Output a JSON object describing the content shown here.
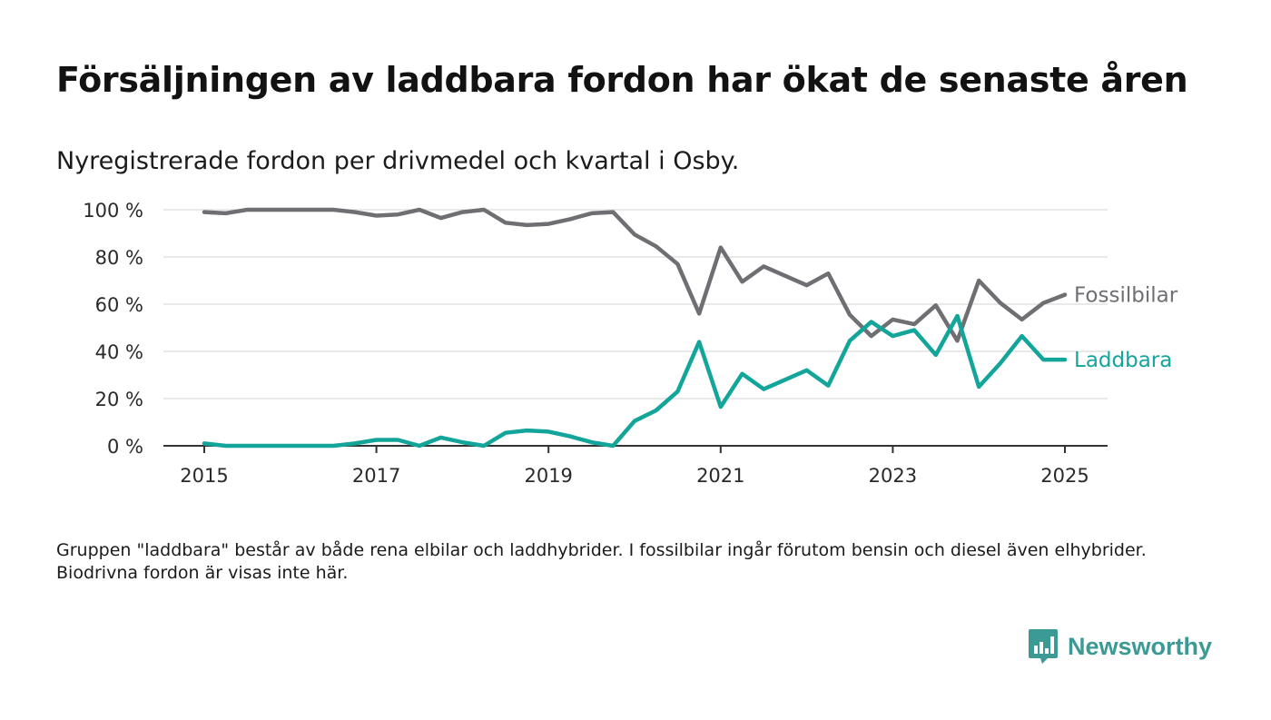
{
  "title": "Försäljningen av laddbara fordon har ökat de senaste åren",
  "subtitle": "Nyregistrerade fordon per drivmedel och kvartal i Osby.",
  "footnote": "Gruppen \"laddbara\" består av både rena elbilar och laddhybrider. I fossilbilar ingår förutom bensin och diesel även elhybrider. Biodrivna fordon är visas inte här.",
  "brand": {
    "name": "Newsworthy",
    "icon": "newsworthy-logo-icon",
    "color": "#3b9a94"
  },
  "chart_data": {
    "type": "line",
    "title": "Försäljningen av laddbara fordon har ökat de senaste åren",
    "subtitle": "Nyregistrerade fordon per drivmedel och kvartal i Osby.",
    "xlabel": "",
    "ylabel": "",
    "x": [
      "2015-Q1",
      "2015-Q2",
      "2015-Q3",
      "2015-Q4",
      "2016-Q1",
      "2016-Q2",
      "2016-Q3",
      "2016-Q4",
      "2017-Q1",
      "2017-Q2",
      "2017-Q3",
      "2017-Q4",
      "2018-Q1",
      "2018-Q2",
      "2018-Q3",
      "2018-Q4",
      "2019-Q1",
      "2019-Q2",
      "2019-Q3",
      "2019-Q4",
      "2020-Q1",
      "2020-Q2",
      "2020-Q3",
      "2020-Q4",
      "2021-Q1",
      "2021-Q2",
      "2021-Q3",
      "2021-Q4",
      "2022-Q1",
      "2022-Q2",
      "2022-Q3",
      "2022-Q4",
      "2023-Q1",
      "2023-Q2",
      "2023-Q3",
      "2023-Q4",
      "2024-Q1",
      "2024-Q2",
      "2024-Q3",
      "2024-Q4",
      "2025-Q1"
    ],
    "xticks": [
      "2015",
      "2017",
      "2019",
      "2021",
      "2023",
      "2025"
    ],
    "yticks": [
      "0 %",
      "20 %",
      "40 %",
      "60 %",
      "80 %",
      "100 %"
    ],
    "ylim": [
      0,
      100
    ],
    "grid": true,
    "legend": "direct-labels-right",
    "series": [
      {
        "name": "Fossilbilar",
        "color": "#6f6f73",
        "values": [
          99,
          98.5,
          100,
          100,
          100,
          100,
          100,
          99,
          97.5,
          98,
          100,
          96.5,
          99,
          100,
          94.5,
          93.5,
          94,
          96,
          98.5,
          99,
          89.5,
          84.5,
          77,
          56,
          84,
          69.5,
          76,
          72,
          68,
          73,
          55.5,
          46.5,
          53.5,
          51.5,
          59.5,
          44.5,
          70,
          60.5,
          53.5,
          60.5,
          64
        ]
      },
      {
        "name": "Laddbara",
        "color": "#13a59a",
        "values": [
          1,
          0,
          0,
          0,
          0,
          0,
          0,
          1,
          2.5,
          2.5,
          0,
          3.5,
          1.5,
          0,
          5.5,
          6.5,
          6,
          4,
          1.5,
          0,
          10.5,
          15,
          23,
          44,
          16.5,
          30.5,
          24,
          28,
          32,
          25.5,
          44.5,
          52.5,
          46.5,
          49,
          38.5,
          55,
          25,
          35,
          46.5,
          36.5,
          36.5
        ]
      }
    ]
  }
}
